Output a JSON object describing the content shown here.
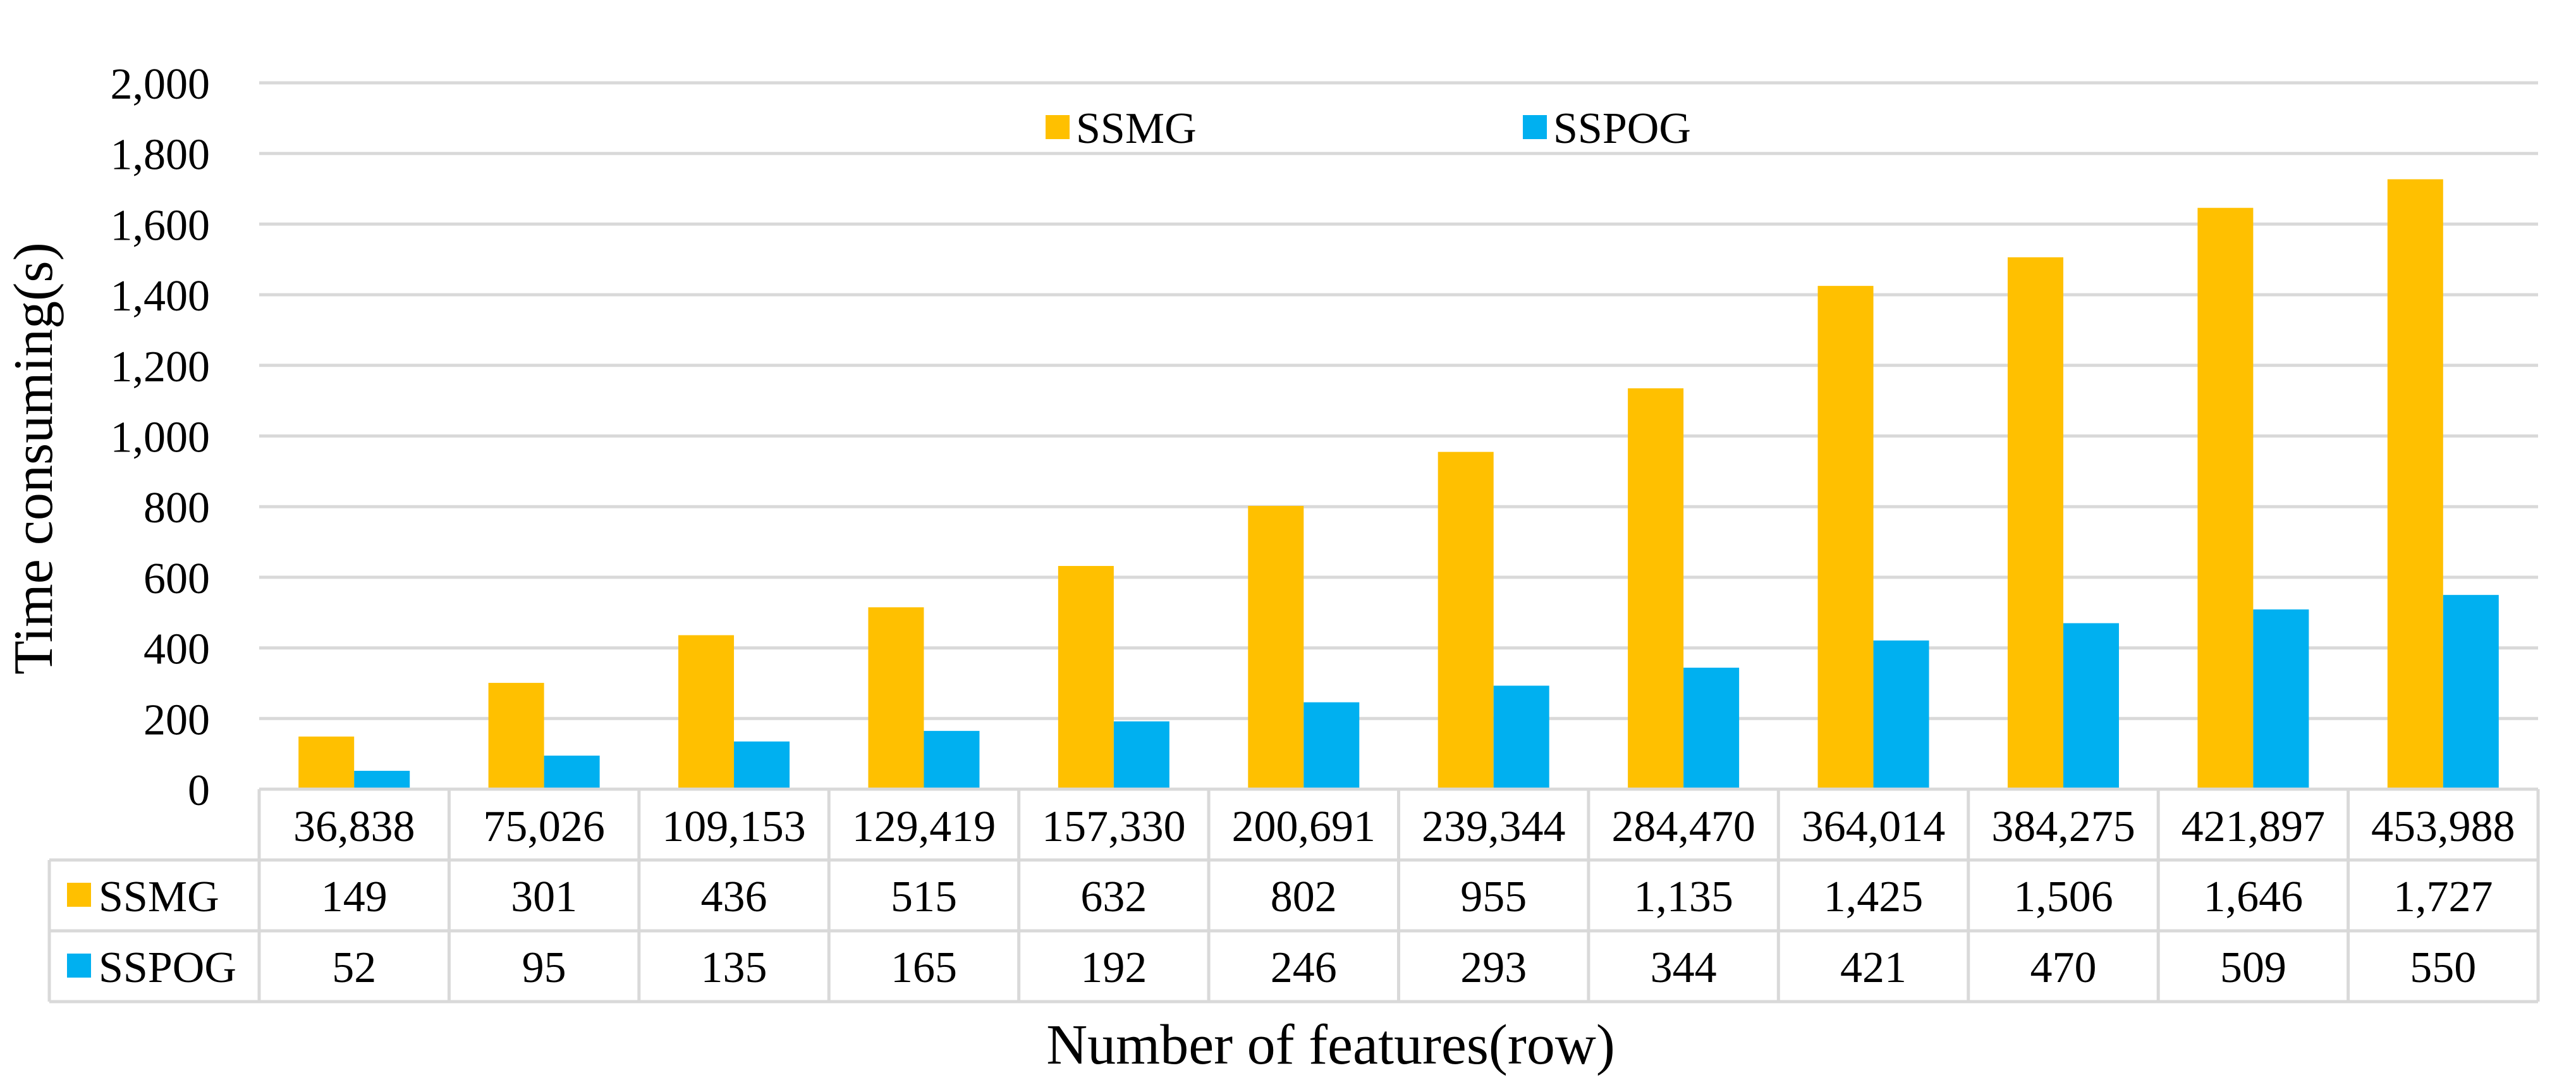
{
  "chart_data": {
    "type": "bar",
    "title": "",
    "xlabel": "Number of features(row)",
    "ylabel": "Time consuming(s)",
    "ylim": [
      0,
      2000
    ],
    "yticks": [
      0,
      200,
      400,
      600,
      800,
      1000,
      1200,
      1400,
      1600,
      1800,
      2000
    ],
    "ytick_labels": [
      "0",
      "200",
      "400",
      "600",
      "800",
      "1,000",
      "1,200",
      "1,400",
      "1,600",
      "1,800",
      "2,000"
    ],
    "grid": true,
    "legend_position": "top-center",
    "categories": [
      "36,838",
      "75,026",
      "109,153",
      "129,419",
      "157,330",
      "200,691",
      "239,344",
      "284,470",
      "364,014",
      "384,275",
      "421,897",
      "453,988"
    ],
    "series": [
      {
        "name": "SSMG",
        "color": "#FFC000",
        "values": [
          149,
          301,
          436,
          515,
          632,
          802,
          955,
          1135,
          1425,
          1506,
          1646,
          1727
        ],
        "labels": [
          "149",
          "301",
          "436",
          "515",
          "632",
          "802",
          "955",
          "1,135",
          "1,425",
          "1,506",
          "1,646",
          "1,727"
        ]
      },
      {
        "name": "SSPOG",
        "color": "#00B0F0",
        "values": [
          52,
          95,
          135,
          165,
          192,
          246,
          293,
          344,
          421,
          470,
          509,
          550
        ],
        "labels": [
          "52",
          "95",
          "135",
          "165",
          "192",
          "246",
          "293",
          "344",
          "421",
          "470",
          "509",
          "550"
        ]
      }
    ],
    "data_table": true
  }
}
